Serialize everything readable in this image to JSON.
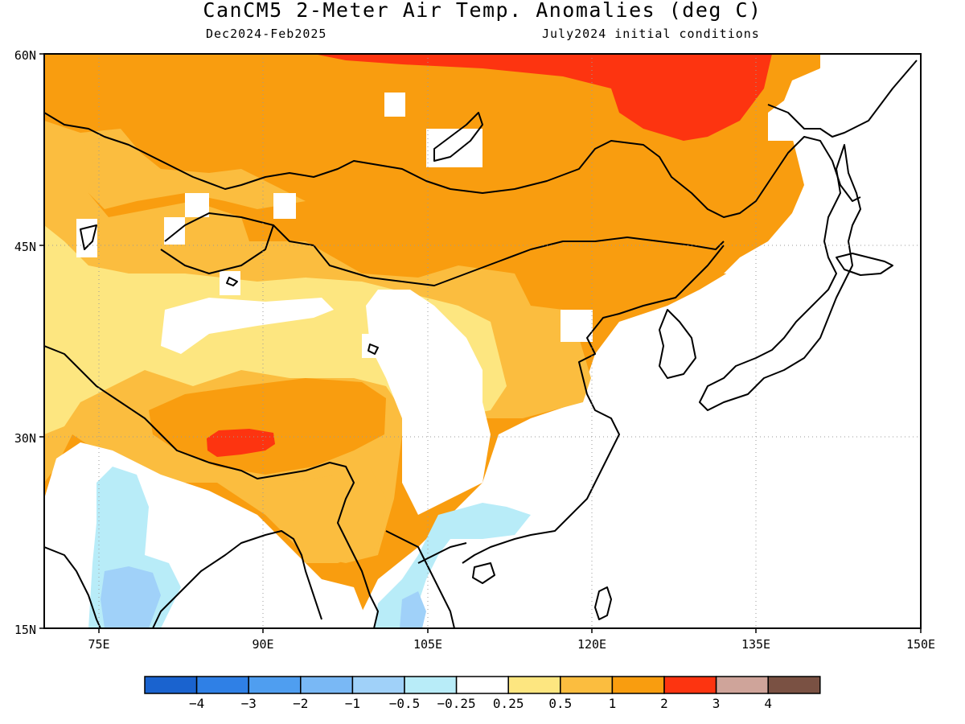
{
  "title": "CanCM5 2-Meter Air Temp. Anomalies (deg C)",
  "subtitle_left": "Dec2024-Feb2025",
  "subtitle_right": "July2024 initial conditions",
  "map": {
    "lon_range": [
      70,
      150
    ],
    "lat_range": [
      15,
      60
    ],
    "lat_ticks": [
      "60N",
      "45N",
      "30N",
      "15N"
    ],
    "lon_ticks": [
      "75E",
      "90E",
      "105E",
      "120E",
      "135E",
      "150E"
    ],
    "grid": "dotted"
  },
  "legend": {
    "colors": [
      "#1a63cf",
      "#2f80e6",
      "#4f9ef0",
      "#79b8f5",
      "#a0d1f9",
      "#b8ecf8",
      "#ffffff",
      "#fde680",
      "#fbbd3f",
      "#f99d0f",
      "#fd3410",
      "#cfa49a",
      "#7a5143"
    ],
    "labels": [
      "-4",
      "-3",
      "-2",
      "-1",
      "-0.5",
      "-0.25",
      "0.25",
      "0.5",
      "1",
      "2",
      "3",
      "4"
    ]
  },
  "regions": [
    {
      "name": "strong-warm-far-east-russia",
      "value": "2 to 3"
    },
    {
      "name": "strong-warm-tibet",
      "value": "2 to 3"
    },
    {
      "name": "cool-southern-india",
      "value": "-1 to -0.5"
    },
    {
      "name": "cool-indochina",
      "value": "-0.5 to -0.25"
    }
  ]
}
